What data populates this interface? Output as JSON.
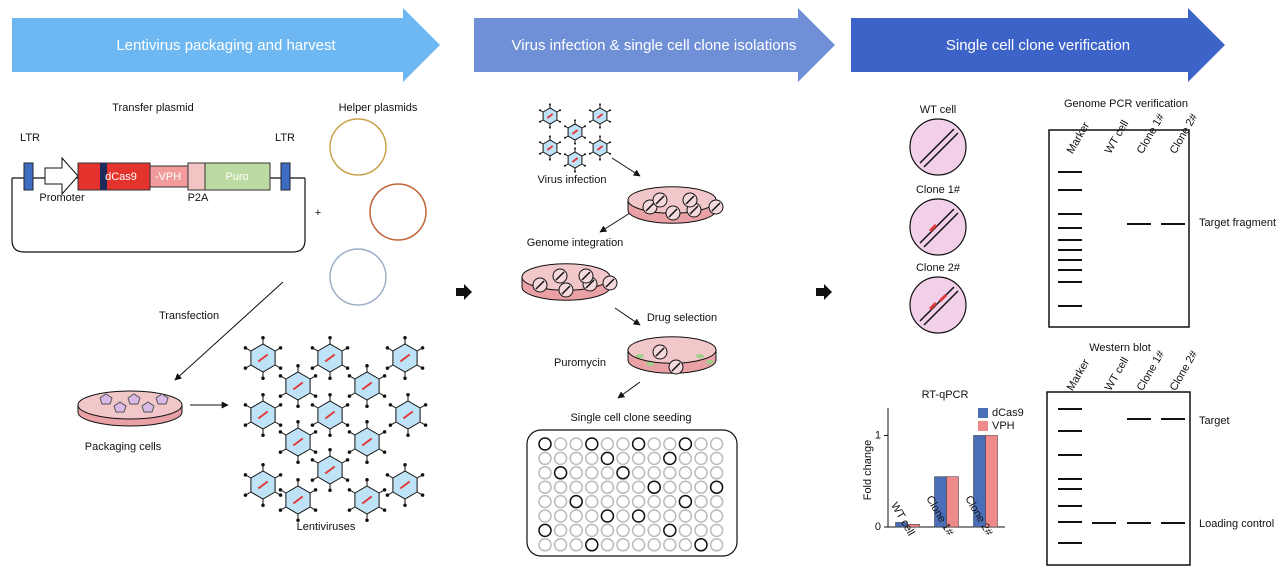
{
  "header": {
    "steps": [
      "Lentivirus packaging and harvest",
      "Virus infection & single cell clone isolations",
      "Single cell clone verification"
    ]
  },
  "packaging": {
    "transfer_plasmid": "Transfer plasmid",
    "ltr_left": "LTR",
    "ltr_right": "LTR",
    "dcas9": "dCas9",
    "vph": "-VPH",
    "puro": "Puro",
    "promoter": "Promoter",
    "p2a": "P2A",
    "plus": "+",
    "helper_plasmids": "Helper plasmids",
    "transfection": "Transfection",
    "packaging_cells": "Packaging cells",
    "lentiviruses": "Lentiviruses"
  },
  "infection": {
    "virus_infection": "Virus infection",
    "genome_integration": "Genome integration",
    "drug_selection": "Drug selection",
    "puromycin": "Puromycin",
    "seeding": "Single cell clone seeding"
  },
  "verification": {
    "cells": [
      "WT cell",
      "Clone 1#",
      "Clone 2#"
    ],
    "pcr": {
      "title": "Genome PCR verification",
      "lanes": [
        "Marker",
        "WT cell",
        "Clone 1#",
        "Clone 2#"
      ],
      "band_label": "Target fragment"
    },
    "western": {
      "title": "Western blot",
      "lanes": [
        "Marker",
        "WT cell",
        "Clone 1#",
        "Clone 2#"
      ],
      "target_label": "Target",
      "loading_label": "Loading control"
    }
  },
  "chart_data": {
    "type": "bar",
    "title": "RT-qPCR",
    "ylabel": "Fold change",
    "categories": [
      "WT cell",
      "Clone 1#",
      "Clone 2#"
    ],
    "series": [
      {
        "name": "dCas9",
        "color": "#4a6fb8",
        "values": [
          0.05,
          0.55,
          1
        ]
      },
      {
        "name": "VPH",
        "color": "#ef8a8a",
        "values": [
          0.03,
          0.55,
          1
        ]
      }
    ],
    "ylim": [
      0,
      1.3
    ],
    "yticks": [
      0,
      1
    ]
  }
}
